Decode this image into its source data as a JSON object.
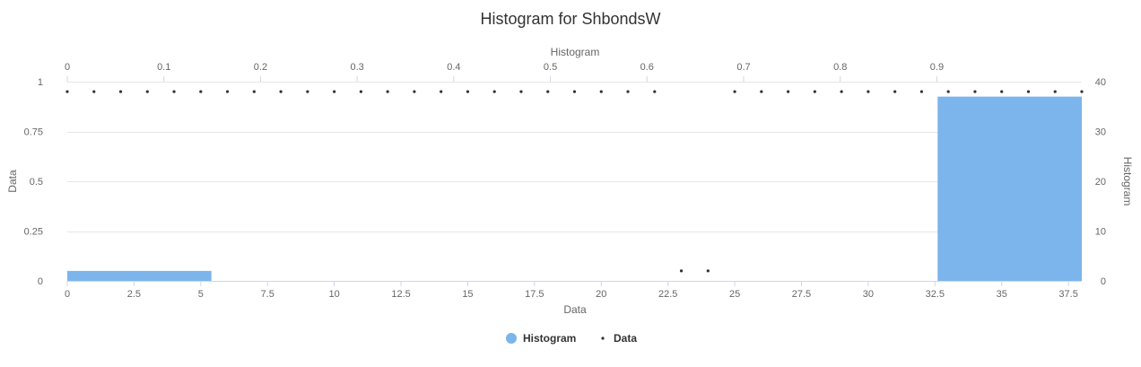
{
  "chart_data": {
    "type": "bar",
    "title": "Histogram for ShbondsW",
    "x_bottom": {
      "label": "Data",
      "range": [
        0,
        38
      ],
      "ticks": [
        0,
        2.5,
        5,
        7.5,
        10,
        12.5,
        15,
        17.5,
        20,
        22.5,
        25,
        27.5,
        30,
        32.5,
        35,
        37.5
      ]
    },
    "x_top": {
      "label": "Histogram",
      "range": [
        0,
        1.05
      ],
      "ticks": [
        0,
        0.1,
        0.2,
        0.3,
        0.4,
        0.5,
        0.6,
        0.7,
        0.8,
        0.9
      ]
    },
    "y_left": {
      "label": "Data",
      "range": [
        0,
        1
      ],
      "ticks": [
        0,
        0.25,
        0.5,
        0.75,
        1
      ]
    },
    "y_right": {
      "label": "Histogram",
      "range": [
        0,
        40
      ],
      "ticks": [
        0,
        10,
        20,
        30,
        40
      ]
    },
    "grid": true,
    "legend_position": "bottom-center",
    "series": [
      {
        "name": "Histogram",
        "kind": "histogram",
        "color": "#7cb5ec",
        "bins": [
          {
            "from": 0,
            "to": 5.4,
            "count": 2
          },
          {
            "from": 32.6,
            "to": 38,
            "count": 37
          }
        ]
      },
      {
        "name": "Data",
        "kind": "scatter",
        "color": "#333333",
        "points": [
          [
            0,
            0.95
          ],
          [
            1,
            0.95
          ],
          [
            2,
            0.95
          ],
          [
            3,
            0.95
          ],
          [
            4,
            0.95
          ],
          [
            5,
            0.95
          ],
          [
            6,
            0.95
          ],
          [
            7,
            0.95
          ],
          [
            8,
            0.95
          ],
          [
            9,
            0.95
          ],
          [
            10,
            0.95
          ],
          [
            11,
            0.95
          ],
          [
            12,
            0.95
          ],
          [
            13,
            0.95
          ],
          [
            14,
            0.95
          ],
          [
            15,
            0.95
          ],
          [
            16,
            0.95
          ],
          [
            17,
            0.95
          ],
          [
            18,
            0.95
          ],
          [
            19,
            0.95
          ],
          [
            20,
            0.95
          ],
          [
            21,
            0.95
          ],
          [
            22,
            0.95
          ],
          [
            23,
            0.05
          ],
          [
            24,
            0.05
          ],
          [
            25,
            0.95
          ],
          [
            26,
            0.95
          ],
          [
            27,
            0.95
          ],
          [
            28,
            0.95
          ],
          [
            29,
            0.95
          ],
          [
            30,
            0.95
          ],
          [
            31,
            0.95
          ],
          [
            32,
            0.95
          ],
          [
            33,
            0.95
          ],
          [
            34,
            0.95
          ],
          [
            35,
            0.95
          ],
          [
            36,
            0.95
          ],
          [
            37,
            0.95
          ],
          [
            38,
            0.95
          ]
        ]
      }
    ]
  }
}
